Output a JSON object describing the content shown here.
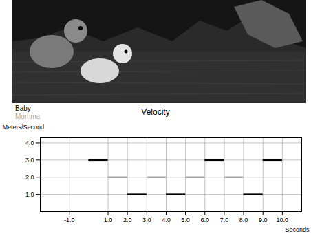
{
  "chart_data": {
    "type": "step",
    "title": "Velocity",
    "x_label": "Seconds",
    "y_label": "Meters/Second",
    "bins": [
      0,
      1,
      2,
      3,
      4,
      5,
      6,
      7,
      8,
      9,
      10
    ],
    "series": [
      {
        "name": "Baby",
        "color": "#000000",
        "values": [
          3,
          null,
          1,
          null,
          1,
          null,
          3,
          null,
          1,
          3
        ]
      },
      {
        "name": "Momma",
        "color": "#a8a8a8",
        "values": [
          null,
          2,
          null,
          2,
          null,
          2,
          null,
          2,
          null,
          null
        ]
      }
    ],
    "xlim": [
      -2.5,
      11
    ],
    "xticks": [
      {
        "value": -1,
        "label": "-1.0"
      },
      {
        "value": 1,
        "label": "1.0"
      },
      {
        "value": 2,
        "label": "2.0"
      },
      {
        "value": 3,
        "label": "3.0"
      },
      {
        "value": 4,
        "label": "4.0"
      },
      {
        "value": 5,
        "label": "5.0"
      },
      {
        "value": 6,
        "label": "6.0"
      },
      {
        "value": 7,
        "label": "7.0"
      },
      {
        "value": 8,
        "label": "8.0"
      },
      {
        "value": 9,
        "label": "9.0"
      },
      {
        "value": 10,
        "label": "10.0"
      }
    ],
    "ylim": [
      0,
      4.3
    ],
    "yticks": [
      {
        "value": 1,
        "label": "1.0"
      },
      {
        "value": 2,
        "label": "2.0"
      },
      {
        "value": 3,
        "label": "3.0"
      },
      {
        "value": 4,
        "label": "4.0"
      }
    ],
    "grid": true,
    "legend": "top-left"
  }
}
